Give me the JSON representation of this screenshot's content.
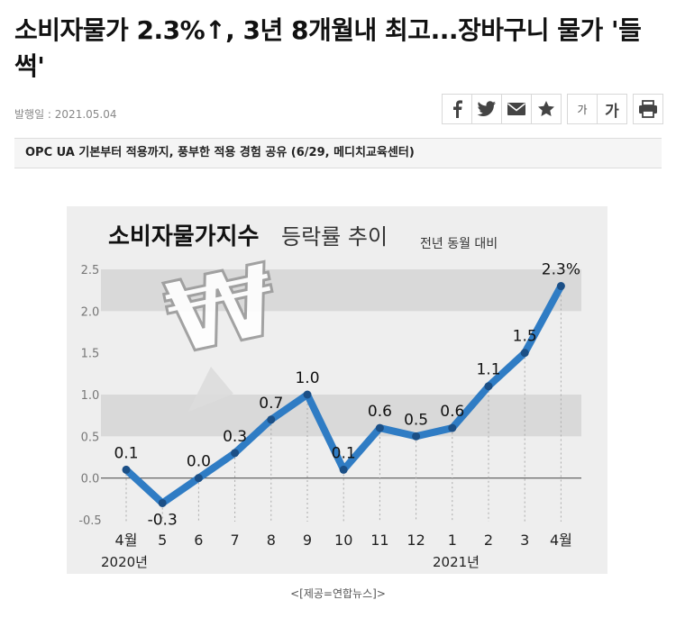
{
  "article": {
    "title": "소비자물가 2.3%↑, 3년 8개월내 최고...장바구니 물가 '들썩'",
    "date_label": "발행일 : 2021.05.04",
    "font_small_label": "가",
    "font_large_label": "가",
    "banner_text": "OPC UA 기본부터 적용까지, 풍부한 적용 경험 공유 (6/29, 메디치교육센터)",
    "caption": "<[제공=연합뉴스]>"
  },
  "share_icons": [
    "facebook-icon",
    "twitter-icon",
    "email-icon",
    "star-icon"
  ],
  "colors": {
    "line": "#2f7cc4",
    "marker": "#1b4f86",
    "band": "#d9d9d9",
    "figure_bg": "#eeeeee"
  },
  "chart_data": {
    "type": "line",
    "title": "소비자물가지수",
    "title_suffix": "등락률 추이",
    "subtitle": "전년 동월 대비",
    "categories": [
      "4월",
      "5",
      "6",
      "7",
      "8",
      "9",
      "10",
      "11",
      "12",
      "1",
      "2",
      "3",
      "4월"
    ],
    "year_labels": [
      "2020년",
      "2021년"
    ],
    "values": [
      0.1,
      -0.3,
      0.0,
      0.3,
      0.7,
      1.0,
      0.1,
      0.6,
      0.5,
      0.6,
      1.1,
      1.5,
      2.3
    ],
    "value_labels": [
      "0.1",
      "-0.3",
      "0.0",
      "0.3",
      "0.7",
      "1.0",
      "0.1",
      "0.6",
      "0.5",
      "0.6",
      "1.1",
      "1.5",
      "2.3%"
    ],
    "yticks": [
      "2.5",
      "2.0",
      "1.5",
      "1.0",
      "0.5",
      "0.0",
      "-0.5"
    ],
    "ylim": [
      -0.5,
      2.5
    ],
    "grid": false
  }
}
